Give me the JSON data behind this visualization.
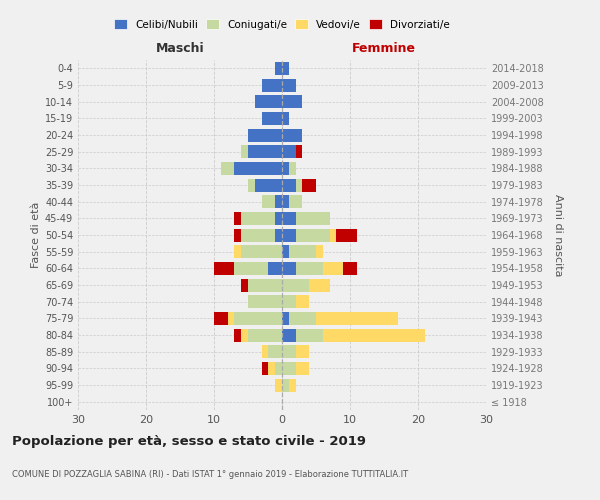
{
  "age_groups": [
    "100+",
    "95-99",
    "90-94",
    "85-89",
    "80-84",
    "75-79",
    "70-74",
    "65-69",
    "60-64",
    "55-59",
    "50-54",
    "45-49",
    "40-44",
    "35-39",
    "30-34",
    "25-29",
    "20-24",
    "15-19",
    "10-14",
    "5-9",
    "0-4"
  ],
  "birth_years": [
    "≤ 1918",
    "1919-1923",
    "1924-1928",
    "1929-1933",
    "1934-1938",
    "1939-1943",
    "1944-1948",
    "1949-1953",
    "1954-1958",
    "1959-1963",
    "1964-1968",
    "1969-1973",
    "1974-1978",
    "1979-1983",
    "1984-1988",
    "1989-1993",
    "1994-1998",
    "1999-2003",
    "2004-2008",
    "2009-2013",
    "2014-2018"
  ],
  "colors": {
    "celibi": "#4472C4",
    "coniugati": "#c5d9a0",
    "vedovi": "#FFD966",
    "divorziati": "#C00000"
  },
  "males": {
    "celibi": [
      0,
      0,
      0,
      0,
      0,
      0,
      0,
      0,
      2,
      0,
      1,
      1,
      1,
      4,
      7,
      5,
      5,
      3,
      4,
      3,
      1
    ],
    "coniugati": [
      0,
      0,
      1,
      2,
      5,
      7,
      5,
      5,
      5,
      6,
      5,
      5,
      2,
      1,
      2,
      1,
      0,
      0,
      0,
      0,
      0
    ],
    "vedovi": [
      0,
      1,
      1,
      1,
      1,
      1,
      0,
      0,
      0,
      1,
      0,
      0,
      0,
      0,
      0,
      0,
      0,
      0,
      0,
      0,
      0
    ],
    "divorziati": [
      0,
      0,
      1,
      0,
      1,
      2,
      0,
      1,
      3,
      0,
      1,
      1,
      0,
      0,
      0,
      0,
      0,
      0,
      0,
      0,
      0
    ]
  },
  "females": {
    "celibi": [
      0,
      0,
      0,
      0,
      2,
      1,
      0,
      0,
      2,
      1,
      2,
      2,
      1,
      2,
      1,
      2,
      3,
      1,
      3,
      2,
      1
    ],
    "coniugati": [
      0,
      1,
      2,
      2,
      4,
      4,
      2,
      4,
      4,
      4,
      5,
      5,
      2,
      1,
      1,
      0,
      0,
      0,
      0,
      0,
      0
    ],
    "vedovi": [
      0,
      1,
      2,
      2,
      15,
      12,
      2,
      3,
      3,
      1,
      1,
      0,
      0,
      0,
      0,
      0,
      0,
      0,
      0,
      0,
      0
    ],
    "divorziati": [
      0,
      0,
      0,
      0,
      0,
      0,
      0,
      0,
      2,
      0,
      3,
      0,
      0,
      2,
      0,
      1,
      0,
      0,
      0,
      0,
      0
    ]
  },
  "xlim": 30,
  "title": "Popolazione per età, sesso e stato civile - 2019",
  "subtitle": "COMUNE DI POZZAGLIA SABINA (RI) - Dati ISTAT 1° gennaio 2019 - Elaborazione TUTTITALIA.IT",
  "ylabel_left": "Fasce di età",
  "ylabel_right": "Anni di nascita",
  "xlabel_left": "Maschi",
  "xlabel_right": "Femmine",
  "bg_color": "#f0f0f0",
  "grid_color": "#cccccc",
  "legend_items": [
    "Celibi/Nubili",
    "Coniugati/e",
    "Vedovi/e",
    "Divorziati/e"
  ]
}
